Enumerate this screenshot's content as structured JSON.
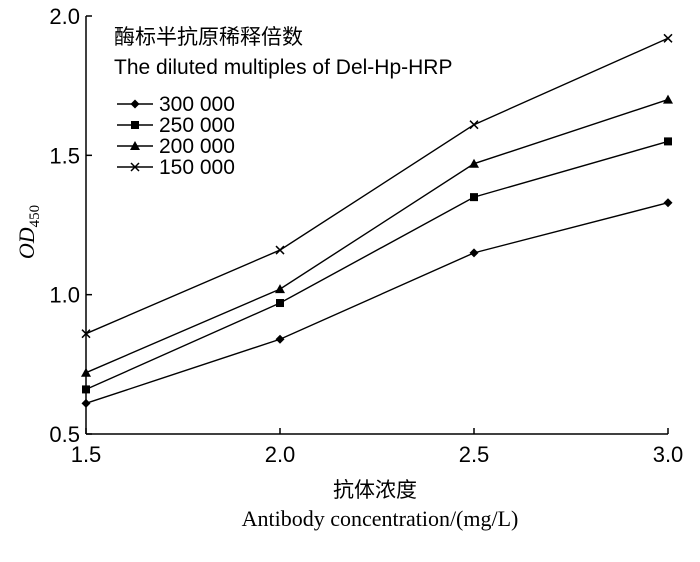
{
  "chart_data": {
    "type": "line",
    "legend_title": "酶标半抗原稀释倍数",
    "legend_subtitle": "The diluted multiples of Del-Hp-HRP",
    "legend_position": "top-left",
    "xlabel_cn": "抗体浓度",
    "xlabel_en": "Antibody concentration/(mg/L)",
    "ylabel_main": "OD",
    "ylabel_sub": "450",
    "xlim": [
      1.5,
      3.0
    ],
    "ylim": [
      0.5,
      2.0
    ],
    "x_ticks": [
      1.5,
      2.0,
      2.5,
      3.0
    ],
    "x_tick_labels": [
      "1.5",
      "2.0",
      "2.5",
      "3.0"
    ],
    "y_ticks": [
      0.5,
      1.0,
      1.5,
      2.0
    ],
    "y_tick_labels": [
      "0.5",
      "1.0",
      "1.5",
      "2.0"
    ],
    "grid": false,
    "x": [
      1.5,
      2.0,
      2.5,
      3.0
    ],
    "series": [
      {
        "name": "300 000",
        "marker": "diamond",
        "values": [
          0.61,
          0.84,
          1.15,
          1.33
        ]
      },
      {
        "name": "250 000",
        "marker": "square",
        "values": [
          0.66,
          0.97,
          1.35,
          1.55
        ]
      },
      {
        "name": "200 000",
        "marker": "triangle",
        "values": [
          0.72,
          1.02,
          1.47,
          1.7
        ]
      },
      {
        "name": "150 000",
        "marker": "cross",
        "values": [
          0.86,
          1.16,
          1.61,
          1.92
        ]
      }
    ]
  }
}
